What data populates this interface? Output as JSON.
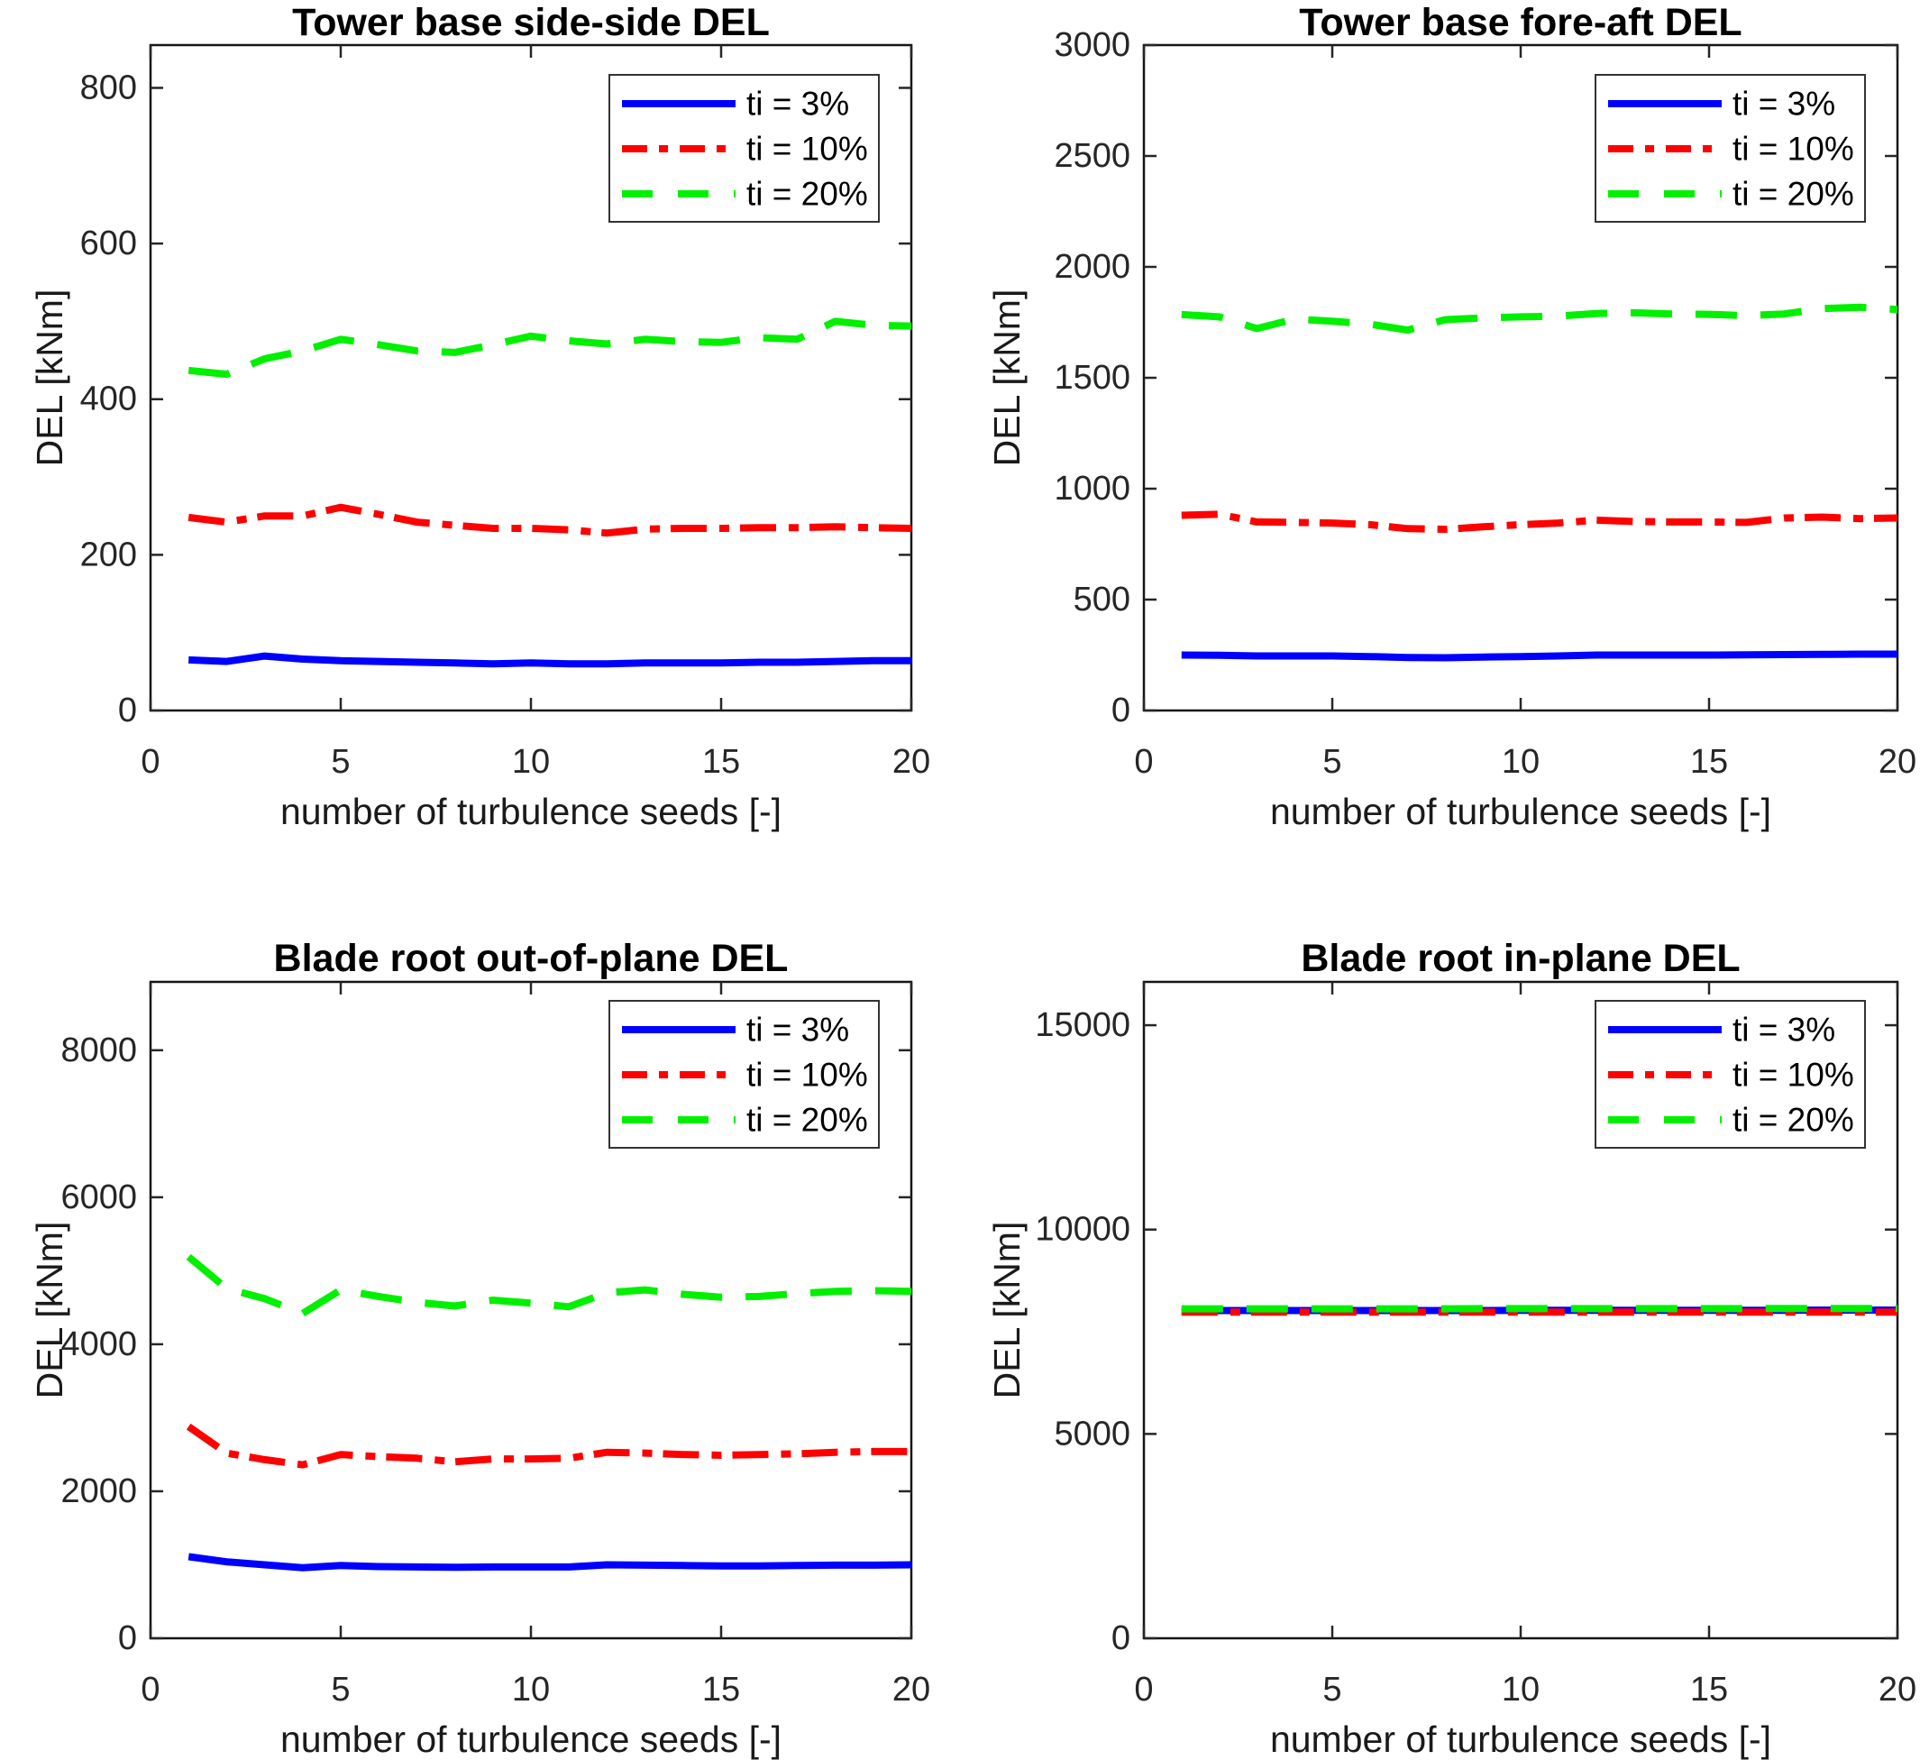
{
  "figure": {
    "background": "#ffffff",
    "axis_color": "#262626",
    "box_color": "#151515",
    "series_colors": {
      "ti3": "#0000ff",
      "ti10": "#ff0000",
      "ti20": "#00f000"
    }
  },
  "chart_data": [
    {
      "type": "line",
      "title": "Tower base side-side DEL",
      "xlabel": "number of turbulence seeds [-]",
      "ylabel": "DEL [kNm]",
      "xlim": [
        0,
        20
      ],
      "ylim": [
        0,
        855
      ],
      "xticks": [
        0,
        5,
        10,
        15,
        20
      ],
      "yticks": [
        0,
        200,
        400,
        600,
        800
      ],
      "grid": false,
      "legend_position": "northeast",
      "x": [
        1,
        2,
        3,
        4,
        5,
        6,
        7,
        8,
        9,
        10,
        11,
        12,
        13,
        14,
        15,
        16,
        17,
        18,
        19,
        20
      ],
      "series": [
        {
          "name": "ti = 3%",
          "color": "#0000ff",
          "style": "solid",
          "values": [
            65,
            63,
            70,
            66,
            64,
            63,
            62,
            61,
            60,
            61,
            60,
            60,
            61,
            61,
            61,
            62,
            62,
            63,
            64,
            64
          ]
        },
        {
          "name": "ti = 10%",
          "color": "#ff0000",
          "style": "dashdot",
          "values": [
            248,
            242,
            250,
            250,
            261,
            252,
            242,
            238,
            234,
            234,
            232,
            228,
            233,
            234,
            234,
            235,
            235,
            236,
            235,
            234
          ]
        },
        {
          "name": "ti = 20%",
          "color": "#00f000",
          "style": "dashed",
          "values": [
            437,
            432,
            452,
            462,
            477,
            470,
            462,
            460,
            470,
            481,
            475,
            471,
            477,
            474,
            473,
            479,
            477,
            500,
            495,
            494
          ]
        }
      ]
    },
    {
      "type": "line",
      "title": "Tower base fore-aft DEL",
      "xlabel": "number of turbulence seeds [-]",
      "ylabel": "DEL [kNm]",
      "xlim": [
        0,
        20
      ],
      "ylim": [
        0,
        3000
      ],
      "xticks": [
        0,
        5,
        10,
        15,
        20
      ],
      "yticks": [
        0,
        500,
        1000,
        1500,
        2000,
        2500,
        3000
      ],
      "grid": false,
      "legend_position": "northeast",
      "x": [
        1,
        2,
        3,
        4,
        5,
        6,
        7,
        8,
        9,
        10,
        11,
        12,
        13,
        14,
        15,
        16,
        17,
        18,
        19,
        20
      ],
      "series": [
        {
          "name": "ti = 3%",
          "color": "#0000ff",
          "style": "solid",
          "values": [
            250,
            249,
            246,
            246,
            246,
            243,
            239,
            238,
            241,
            243,
            246,
            250,
            250,
            250,
            250,
            251,
            252,
            253,
            254,
            254
          ]
        },
        {
          "name": "ti = 10%",
          "color": "#ff0000",
          "style": "dashdot",
          "values": [
            880,
            885,
            850,
            848,
            845,
            838,
            820,
            817,
            828,
            838,
            845,
            858,
            852,
            850,
            850,
            848,
            868,
            872,
            865,
            868
          ]
        },
        {
          "name": "ti = 20%",
          "color": "#00f000",
          "style": "dashed",
          "values": [
            1785,
            1775,
            1722,
            1765,
            1755,
            1742,
            1715,
            1762,
            1770,
            1775,
            1778,
            1790,
            1793,
            1788,
            1786,
            1780,
            1788,
            1812,
            1818,
            1808
          ]
        }
      ]
    },
    {
      "type": "line",
      "title": "Blade root out-of-plane DEL",
      "xlabel": "number of turbulence seeds [-]",
      "ylabel": "DEL [kNm]",
      "xlim": [
        0,
        20
      ],
      "ylim": [
        0,
        8930
      ],
      "xticks": [
        0,
        5,
        10,
        15,
        20
      ],
      "yticks": [
        0,
        2000,
        4000,
        6000,
        8000
      ],
      "grid": false,
      "legend_position": "northeast",
      "x": [
        1,
        2,
        3,
        4,
        5,
        6,
        7,
        8,
        9,
        10,
        11,
        12,
        13,
        14,
        15,
        16,
        17,
        18,
        19,
        20
      ],
      "series": [
        {
          "name": "ti = 3%",
          "color": "#0000ff",
          "style": "solid",
          "values": [
            1110,
            1040,
            1000,
            960,
            990,
            975,
            970,
            965,
            970,
            970,
            970,
            1000,
            995,
            990,
            985,
            985,
            990,
            995,
            995,
            1000
          ]
        },
        {
          "name": "ti = 10%",
          "color": "#ff0000",
          "style": "dashdot",
          "values": [
            2880,
            2520,
            2430,
            2360,
            2500,
            2470,
            2450,
            2400,
            2440,
            2440,
            2450,
            2530,
            2520,
            2500,
            2490,
            2500,
            2510,
            2530,
            2540,
            2540
          ]
        },
        {
          "name": "ti = 20%",
          "color": "#00f000",
          "style": "dashed",
          "values": [
            5190,
            4760,
            4620,
            4420,
            4740,
            4650,
            4570,
            4520,
            4600,
            4560,
            4510,
            4700,
            4740,
            4680,
            4640,
            4650,
            4690,
            4720,
            4730,
            4720
          ]
        }
      ]
    },
    {
      "type": "line",
      "title": "Blade root in-plane DEL",
      "xlabel": "number of turbulence seeds [-]",
      "ylabel": "DEL [kNm]",
      "xlim": [
        0,
        20
      ],
      "ylim": [
        0,
        16060
      ],
      "xticks": [
        0,
        5,
        10,
        15,
        20
      ],
      "yticks": [
        0,
        5000,
        10000,
        15000
      ],
      "grid": false,
      "legend_position": "northeast",
      "x": [
        1,
        2,
        3,
        4,
        5,
        6,
        7,
        8,
        9,
        10,
        11,
        12,
        13,
        14,
        15,
        16,
        17,
        18,
        19,
        20
      ],
      "series": [
        {
          "name": "ti = 3%",
          "color": "#0000ff",
          "style": "solid",
          "values": [
            8020,
            8020,
            8020,
            8020,
            8020,
            8020,
            8020,
            8020,
            8020,
            8025,
            8025,
            8025,
            8025,
            8025,
            8025,
            8025,
            8025,
            8030,
            8030,
            8030
          ]
        },
        {
          "name": "ti = 10%",
          "color": "#ff0000",
          "style": "dashdot",
          "values": [
            7980,
            7980,
            7980,
            7980,
            7980,
            7980,
            7980,
            7980,
            7980,
            7980,
            7980,
            7980,
            7980,
            7980,
            7980,
            7980,
            7980,
            7980,
            7980,
            7980
          ]
        },
        {
          "name": "ti = 20%",
          "color": "#00f000",
          "style": "dashed",
          "values": [
            8060,
            8060,
            8060,
            8060,
            8060,
            8060,
            8060,
            8060,
            8065,
            8065,
            8065,
            8065,
            8065,
            8065,
            8065,
            8065,
            8070,
            8070,
            8070,
            8070
          ]
        }
      ]
    }
  ]
}
